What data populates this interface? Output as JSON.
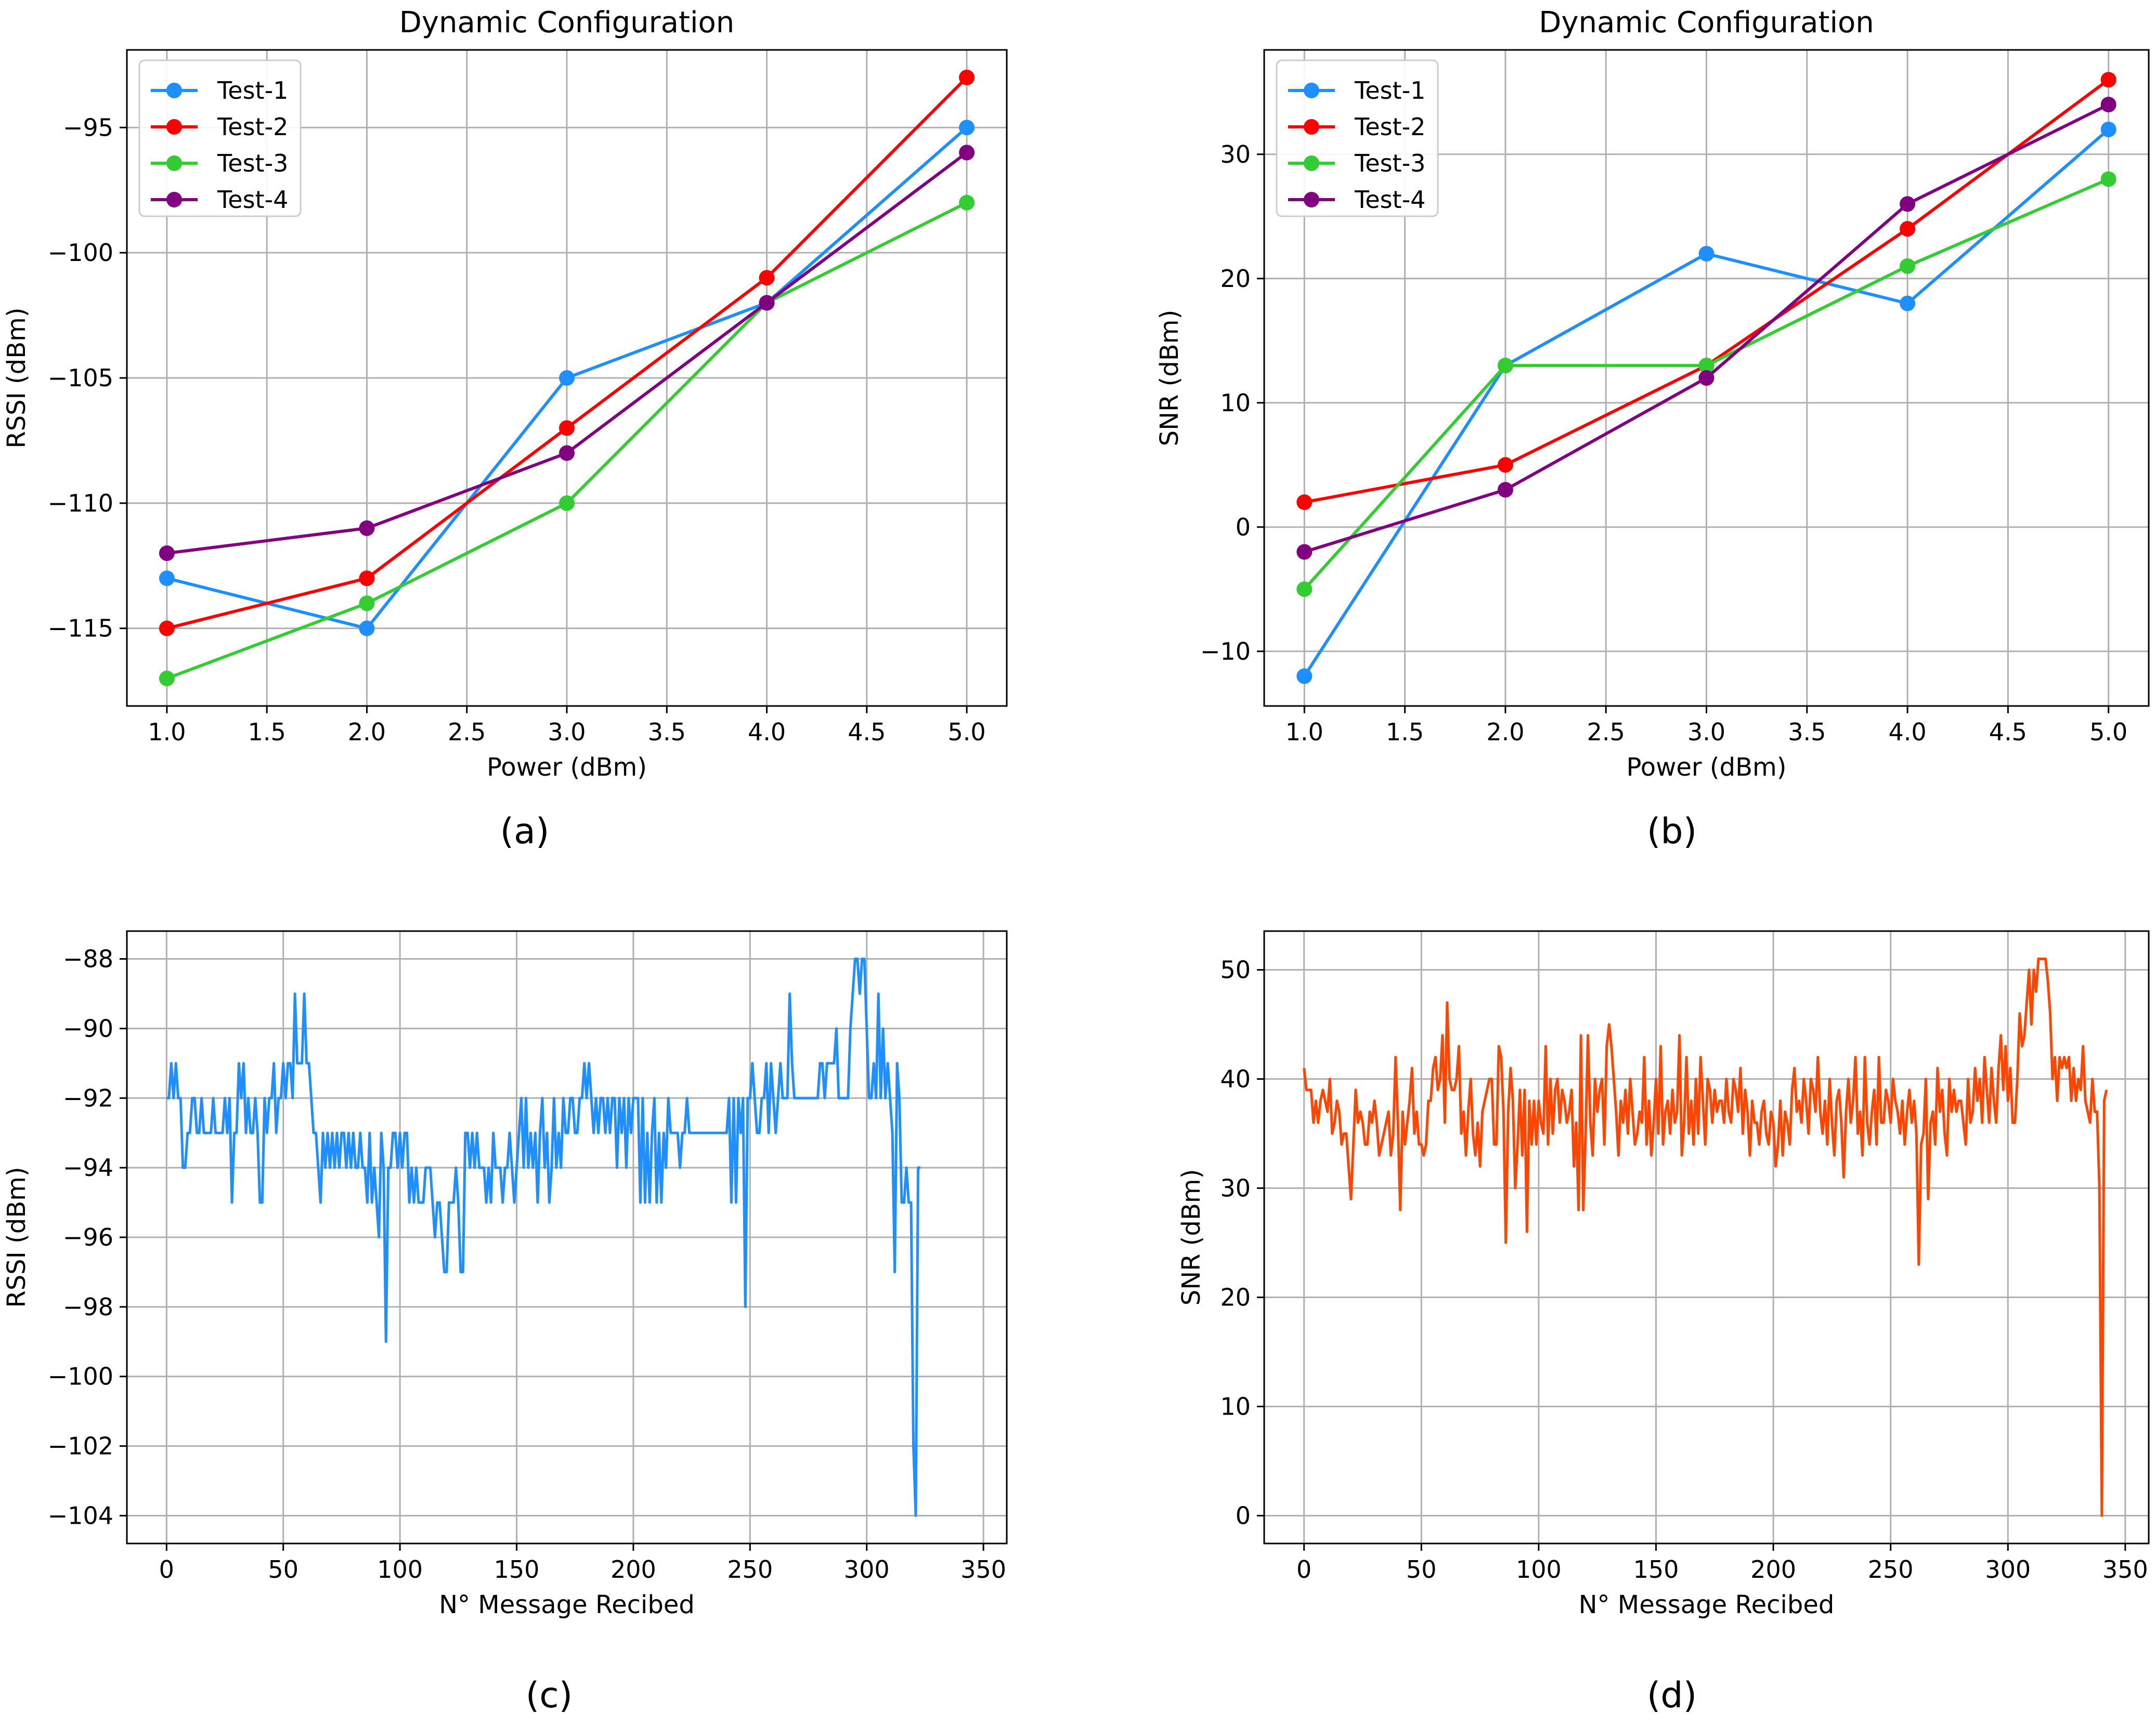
{
  "colors": {
    "test1": "#1f8fff",
    "test2": "#ff0000",
    "test3": "#33cc33",
    "test4": "#800080",
    "rssi_trace": "#1f8fff",
    "snr_trace": "#ff4500",
    "grid": "#b0b0b0"
  },
  "chart_data": [
    {
      "id": "a",
      "type": "line",
      "caption": "(a)",
      "title": "Dynamic Configuration",
      "xlabel": "Power (dBm)",
      "ylabel": "RSSI (dBm)",
      "xlim": [
        0.8,
        5.2
      ],
      "ylim": [
        -118.1,
        -91.9
      ],
      "xticks": [
        1.0,
        1.5,
        2.0,
        2.5,
        3.0,
        3.5,
        4.0,
        4.5,
        5.0
      ],
      "xtick_labels": [
        "1.0",
        "1.5",
        "2.0",
        "2.5",
        "3.0",
        "3.5",
        "4.0",
        "4.5",
        "5.0"
      ],
      "yticks": [
        -115,
        -110,
        -105,
        -100,
        -95
      ],
      "ytick_labels": [
        "−115",
        "−110",
        "−105",
        "−100",
        "−95"
      ],
      "grid": true,
      "legend_position": "top-left",
      "markers": true,
      "x": [
        1,
        2,
        3,
        4,
        5
      ],
      "series": [
        {
          "name": "Test-1",
          "color_key": "test1",
          "values": [
            -113,
            -115,
            -105,
            -102,
            -95
          ]
        },
        {
          "name": "Test-2",
          "color_key": "test2",
          "values": [
            -115,
            -113,
            -107,
            -101,
            -93
          ]
        },
        {
          "name": "Test-3",
          "color_key": "test3",
          "values": [
            -117,
            -114,
            -110,
            -102,
            -98
          ]
        },
        {
          "name": "Test-4",
          "color_key": "test4",
          "values": [
            -112,
            -111,
            -108,
            -102,
            -96
          ]
        }
      ]
    },
    {
      "id": "b",
      "type": "line",
      "caption": "(b)",
      "title": "Dynamic Configuration",
      "xlabel": "Power (dBm)",
      "ylabel": "SNR (dBm)",
      "xlim": [
        0.8,
        5.2
      ],
      "ylim": [
        -14.4,
        38.4
      ],
      "xticks": [
        1.0,
        1.5,
        2.0,
        2.5,
        3.0,
        3.5,
        4.0,
        4.5,
        5.0
      ],
      "xtick_labels": [
        "1.0",
        "1.5",
        "2.0",
        "2.5",
        "3.0",
        "3.5",
        "4.0",
        "4.5",
        "5.0"
      ],
      "yticks": [
        -10,
        0,
        10,
        20,
        30
      ],
      "ytick_labels": [
        "−10",
        "0",
        "10",
        "20",
        "30"
      ],
      "grid": true,
      "legend_position": "top-left",
      "markers": true,
      "x": [
        1,
        2,
        3,
        4,
        5
      ],
      "series": [
        {
          "name": "Test-1",
          "color_key": "test1",
          "values": [
            -12,
            13,
            22,
            18,
            32
          ]
        },
        {
          "name": "Test-2",
          "color_key": "test2",
          "values": [
            2,
            5,
            13,
            24,
            36
          ]
        },
        {
          "name": "Test-3",
          "color_key": "test3",
          "values": [
            -5,
            13,
            13,
            21,
            28
          ]
        },
        {
          "name": "Test-4",
          "color_key": "test4",
          "values": [
            -2,
            3,
            12,
            26,
            34
          ]
        }
      ]
    },
    {
      "id": "c",
      "type": "line",
      "caption": "(c)",
      "title": "",
      "xlabel": "N° Message Recibed",
      "ylabel": "RSSI (dBm)",
      "xlim": [
        -17,
        360
      ],
      "ylim": [
        -104.8,
        -87.2
      ],
      "xticks": [
        0,
        50,
        100,
        150,
        200,
        250,
        300,
        350
      ],
      "xtick_labels": [
        "0",
        "50",
        "100",
        "150",
        "200",
        "250",
        "300",
        "350"
      ],
      "yticks": [
        -104,
        -102,
        -100,
        -98,
        -96,
        -94,
        -92,
        -90,
        -88
      ],
      "ytick_labels": [
        "−104",
        "−102",
        "−100",
        "−98",
        "−96",
        "−94",
        "−92",
        "−90",
        "−88"
      ],
      "grid": true,
      "markers": false,
      "x_start": 0,
      "x_step": 1,
      "series": [
        {
          "name": "RSSI",
          "color_key": "rssi_trace",
          "values": [
            -92,
            -92,
            -91,
            -92,
            -91,
            -92,
            -92,
            -94,
            -94,
            -93,
            -93,
            -92,
            -92,
            -93,
            -93,
            -92,
            -93,
            -93,
            -93,
            -93,
            -92,
            -93,
            -93,
            -93,
            -93,
            -92,
            -93,
            -92,
            -95,
            -93,
            -93,
            -91,
            -92,
            -91,
            -93,
            -92,
            -93,
            -93,
            -92,
            -93,
            -95,
            -95,
            -92,
            -93,
            -92,
            -92,
            -91,
            -93,
            -92,
            -92,
            -91,
            -92,
            -91,
            -91,
            -92,
            -89,
            -91,
            -91,
            -91,
            -89,
            -91,
            -91,
            -92,
            -93,
            -93,
            -94,
            -95,
            -93,
            -94,
            -93,
            -94,
            -93,
            -94,
            -93,
            -94,
            -93,
            -93,
            -94,
            -93,
            -94,
            -93,
            -94,
            -94,
            -93,
            -94,
            -94,
            -95,
            -93,
            -95,
            -94,
            -95,
            -96,
            -93,
            -94,
            -99,
            -94,
            -94,
            -93,
            -93,
            -94,
            -93,
            -94,
            -93,
            -93,
            -95,
            -94,
            -95,
            -94,
            -95,
            -95,
            -95,
            -94,
            -94,
            -94,
            -95,
            -96,
            -95,
            -95,
            -96,
            -97,
            -97,
            -95,
            -95,
            -95,
            -94,
            -95,
            -97,
            -97,
            -93,
            -93,
            -94,
            -93,
            -94,
            -93,
            -94,
            -94,
            -94,
            -95,
            -94,
            -95,
            -93,
            -94,
            -94,
            -94,
            -95,
            -94,
            -94,
            -93,
            -94,
            -95,
            -94,
            -93,
            -92,
            -94,
            -92,
            -94,
            -93,
            -94,
            -93,
            -95,
            -93,
            -92,
            -94,
            -93,
            -95,
            -94,
            -92,
            -94,
            -93,
            -94,
            -92,
            -93,
            -93,
            -92,
            -92,
            -93,
            -93,
            -92,
            -92,
            -91,
            -92,
            -91,
            -92,
            -93,
            -92,
            -93,
            -92,
            -92,
            -93,
            -92,
            -93,
            -92,
            -92,
            -94,
            -92,
            -93,
            -92,
            -94,
            -92,
            -93,
            -92,
            -92,
            -92,
            -95,
            -92,
            -95,
            -93,
            -95,
            -93,
            -92,
            -95,
            -93,
            -95,
            -93,
            -94,
            -92,
            -93,
            -93,
            -93,
            -93,
            -94,
            -93,
            -93,
            -92,
            -93,
            -93,
            -93,
            -93,
            -93,
            -93,
            -93,
            -93,
            -93,
            -93,
            -93,
            -93,
            -93,
            -93,
            -93,
            -93,
            -93,
            -92,
            -95,
            -92,
            -95,
            -92,
            -93,
            -92,
            -98,
            -92,
            -92,
            -91,
            -92,
            -93,
            -93,
            -92,
            -92,
            -91,
            -93,
            -91,
            -92,
            -93,
            -92,
            -91,
            -92,
            -92,
            -92,
            -89,
            -91,
            -92,
            -92,
            -92,
            -92,
            -92,
            -92,
            -92,
            -92,
            -92,
            -92,
            -92,
            -91,
            -91,
            -92,
            -91,
            -91,
            -91,
            -91,
            -90,
            -92,
            -92,
            -92,
            -92,
            -92,
            -90,
            -89,
            -88,
            -88,
            -89,
            -88,
            -88,
            -90,
            -92,
            -92,
            -91,
            -92,
            -89,
            -92,
            -90,
            -92,
            -91,
            -92,
            -93,
            -97,
            -91,
            -92,
            -95,
            -95,
            -94,
            -95,
            -95,
            -102,
            -104,
            -94,
            -94
          ]
        }
      ]
    },
    {
      "id": "d",
      "type": "line",
      "caption": "(d)",
      "title": "",
      "xlabel": "N° Message Recibed",
      "ylabel": "SNR (dBm)",
      "xlim": [
        -17,
        360
      ],
      "ylim": [
        -2.55,
        53.55
      ],
      "xticks": [
        0,
        50,
        100,
        150,
        200,
        250,
        300,
        350
      ],
      "xtick_labels": [
        "0",
        "50",
        "100",
        "150",
        "200",
        "250",
        "300",
        "350"
      ],
      "yticks": [
        0,
        10,
        20,
        30,
        40,
        50
      ],
      "ytick_labels": [
        "0",
        "10",
        "20",
        "30",
        "40",
        "50"
      ],
      "grid": true,
      "markers": false,
      "x_start": 0,
      "x_step": 1,
      "series": [
        {
          "name": "SNR",
          "color_key": "snr_trace",
          "values": [
            41,
            39,
            39,
            39,
            36,
            38,
            36,
            38,
            39,
            38,
            37,
            40,
            35,
            36,
            38,
            37,
            34,
            35,
            35,
            32,
            29,
            34,
            39,
            36,
            37,
            36,
            34,
            34,
            37,
            36,
            38,
            36,
            33,
            34,
            35,
            36,
            37,
            33,
            35,
            42,
            36,
            28,
            37,
            34,
            36,
            38,
            41,
            35,
            37,
            34,
            34,
            33,
            34,
            38,
            38,
            41,
            42,
            39,
            40,
            44,
            36,
            47,
            40,
            39,
            39,
            40,
            43,
            35,
            37,
            33,
            37,
            40,
            35,
            33,
            36,
            32,
            37,
            38,
            39,
            40,
            40,
            34,
            34,
            43,
            42,
            37,
            25,
            37,
            41,
            38,
            30,
            34,
            39,
            33,
            39,
            26,
            38,
            34,
            38,
            34,
            38,
            36,
            35,
            43,
            34,
            40,
            35,
            39,
            40,
            36,
            39,
            38,
            36,
            37,
            39,
            32,
            36,
            28,
            44,
            28,
            35,
            44,
            36,
            33,
            40,
            37,
            39,
            40,
            34,
            43,
            45,
            43,
            40,
            37,
            33,
            38,
            36,
            39,
            35,
            40,
            37,
            34,
            35,
            37,
            36,
            42,
            34,
            38,
            33,
            36,
            40,
            35,
            43,
            34,
            37,
            38,
            35,
            39,
            36,
            37,
            44,
            33,
            36,
            42,
            35,
            38,
            34,
            40,
            35,
            42,
            38,
            34,
            40,
            39,
            36,
            39,
            37,
            38,
            38,
            36,
            40,
            37,
            36,
            40,
            39,
            37,
            41,
            35,
            39,
            37,
            33,
            38,
            36,
            36,
            34,
            37,
            38,
            35,
            34,
            37,
            36,
            32,
            34,
            38,
            33,
            37,
            36,
            34,
            39,
            41,
            37,
            38,
            36,
            40,
            38,
            35,
            40,
            39,
            37,
            42,
            37,
            35,
            38,
            34,
            40,
            36,
            33,
            38,
            39,
            36,
            31,
            37,
            40,
            36,
            38,
            42,
            35,
            37,
            33,
            42,
            36,
            34,
            37,
            39,
            34,
            42,
            36,
            36,
            39,
            38,
            36,
            40,
            38,
            37,
            35,
            38,
            34,
            37,
            39,
            36,
            38,
            35,
            23,
            34,
            35,
            40,
            29,
            36,
            37,
            34,
            41,
            37,
            39,
            35,
            33,
            40,
            37,
            39,
            37,
            38,
            38,
            36,
            34,
            40,
            36,
            37,
            41,
            38,
            40,
            36,
            42,
            39,
            36,
            41,
            38,
            36,
            41,
            44,
            39,
            43,
            38,
            41,
            36,
            36,
            40,
            46,
            43,
            44,
            47,
            50,
            45,
            50,
            48,
            51,
            51,
            51,
            51,
            49,
            46,
            40,
            42,
            38,
            42,
            41,
            42,
            41,
            42,
            38,
            41,
            38,
            40,
            39,
            43,
            38,
            37,
            36,
            40,
            37,
            37,
            30,
            0,
            38,
            39
          ]
        }
      ]
    }
  ]
}
